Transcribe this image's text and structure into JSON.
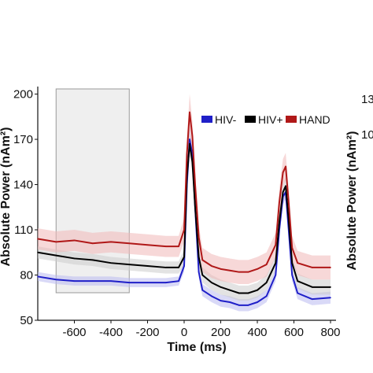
{
  "chart_data": {
    "type": "line",
    "xlabel": "Time (ms)",
    "ylabel": "Absolute Power (nAm²)",
    "right_ylabel": "Absolute Power (nAm²)",
    "right_ticks_partial": [
      "13",
      "10"
    ],
    "xlim": [
      -800,
      830
    ],
    "ylim": [
      50,
      205
    ],
    "x_ticks": [
      -600,
      -400,
      -200,
      0,
      200,
      400,
      600,
      800
    ],
    "y_ticks": [
      50,
      80,
      110,
      140,
      170,
      200
    ],
    "baseline_window": [
      -700,
      -300
    ],
    "grid": false,
    "legend_position": "top-right",
    "series": [
      {
        "name": "HIV-",
        "color": "#1f1fc8",
        "band_color": "#b9b9f0",
        "x": [
          -800,
          -700,
          -600,
          -500,
          -400,
          -300,
          -200,
          -100,
          -30,
          0,
          15,
          30,
          45,
          60,
          80,
          100,
          150,
          200,
          250,
          300,
          350,
          400,
          450,
          500,
          520,
          540,
          555,
          570,
          590,
          620,
          700,
          800
        ],
        "y": [
          79,
          77,
          76,
          76,
          76,
          75,
          75,
          75,
          76,
          86,
          140,
          170,
          160,
          125,
          82,
          70,
          66,
          63,
          62,
          60,
          60,
          62,
          66,
          80,
          110,
          132,
          135,
          112,
          80,
          68,
          64,
          65
        ],
        "err": [
          3,
          3,
          3,
          3,
          3,
          3,
          3,
          3,
          3,
          4,
          6,
          7,
          6,
          5,
          4,
          4,
          4,
          4,
          4,
          4,
          4,
          4,
          4,
          4,
          5,
          5,
          5,
          5,
          4,
          4,
          4,
          4
        ]
      },
      {
        "name": "HIV+",
        "color": "#000000",
        "band_color": "#cccccc",
        "x": [
          -800,
          -700,
          -600,
          -500,
          -400,
          -300,
          -200,
          -100,
          -30,
          0,
          15,
          30,
          45,
          60,
          80,
          100,
          150,
          200,
          250,
          300,
          350,
          400,
          450,
          500,
          520,
          540,
          555,
          570,
          590,
          620,
          700,
          800
        ],
        "y": [
          95,
          93,
          91,
          90,
          88,
          87,
          86,
          85,
          85,
          92,
          145,
          167,
          155,
          125,
          92,
          80,
          75,
          72,
          70,
          68,
          68,
          70,
          75,
          88,
          115,
          135,
          139,
          118,
          88,
          76,
          72,
          72
        ],
        "err": [
          4,
          4,
          4,
          4,
          4,
          4,
          4,
          4,
          4,
          5,
          7,
          8,
          7,
          6,
          5,
          5,
          5,
          5,
          5,
          5,
          5,
          5,
          5,
          5,
          6,
          6,
          6,
          6,
          5,
          5,
          5,
          5
        ]
      },
      {
        "name": "HAND",
        "color": "#b01818",
        "band_color": "#f0b8b8",
        "x": [
          -800,
          -700,
          -600,
          -500,
          -400,
          -300,
          -200,
          -100,
          -30,
          0,
          15,
          30,
          45,
          60,
          80,
          100,
          150,
          200,
          250,
          300,
          350,
          400,
          450,
          500,
          520,
          540,
          555,
          570,
          590,
          620,
          700,
          800
        ],
        "y": [
          104,
          102,
          103,
          101,
          102,
          101,
          100,
          99,
          99,
          110,
          160,
          188,
          172,
          140,
          105,
          90,
          86,
          84,
          83,
          82,
          82,
          84,
          87,
          100,
          128,
          148,
          152,
          130,
          98,
          88,
          85,
          85
        ],
        "err": [
          7,
          7,
          7,
          7,
          7,
          7,
          7,
          7,
          7,
          8,
          10,
          12,
          10,
          9,
          8,
          8,
          8,
          8,
          8,
          8,
          8,
          8,
          8,
          8,
          9,
          9,
          9,
          9,
          8,
          8,
          8,
          8
        ]
      }
    ]
  }
}
